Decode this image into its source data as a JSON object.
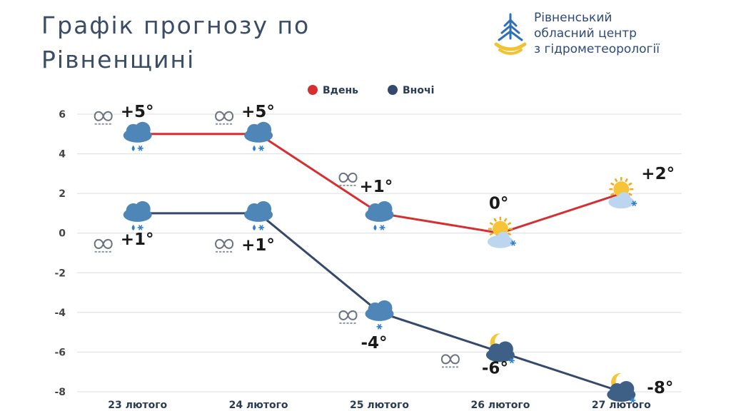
{
  "title": "Графік прогнозу по Рівненщині",
  "org": {
    "line1": "Рівненський",
    "line2": "обласний центр",
    "line3": "з гідрометеорології",
    "colors": {
      "blue": "#2e6fb5",
      "yellow": "#f1c232"
    }
  },
  "chart_data": {
    "type": "line",
    "categories": [
      "23 лютого",
      "24 лютого",
      "25 лютого",
      "26 лютого",
      "27 лютого"
    ],
    "ylim": [
      -8,
      6
    ],
    "yticks": [
      6,
      4,
      2,
      0,
      -2,
      -4,
      -6,
      -8
    ],
    "grid": true,
    "legend_position": "top-center",
    "series": [
      {
        "name": "Вдень",
        "color": "#d62f2f",
        "values": [
          5,
          5,
          1,
          0,
          2
        ],
        "labels": [
          "+5°",
          "+5°",
          "+1°",
          "0°",
          "+2°"
        ],
        "icons": [
          "cloud-snow-rain-icon",
          "cloud-snow-rain-icon",
          "cloud-snow-rain-icon",
          "sun-cloud-snow-icon",
          "sun-cloud-snow-icon"
        ],
        "fog": [
          true,
          true,
          true,
          false,
          false
        ]
      },
      {
        "name": "Вночі",
        "color": "#34496b",
        "values": [
          1,
          1,
          -4,
          -6,
          -8
        ],
        "labels": [
          "+1°",
          "+1°",
          "-4°",
          "-6°",
          "-8°"
        ],
        "icons": [
          "cloud-snow-rain-icon",
          "cloud-snow-rain-icon",
          "cloud-snow-icon",
          "moon-cloud-snow-icon",
          "moon-cloud-snow-icon"
        ],
        "fog": [
          true,
          true,
          true,
          true,
          false
        ]
      }
    ]
  }
}
